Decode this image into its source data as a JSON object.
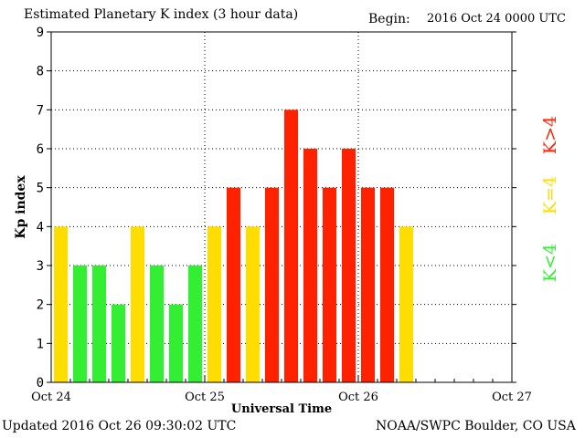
{
  "header": {
    "title": "Estimated Planetary K index (3 hour data)",
    "begin_label": "Begin:",
    "begin_value": "2016 Oct 24 0000 UTC"
  },
  "footer": {
    "updated": "Updated 2016 Oct 26 09:30:02 UTC",
    "credit": "NOAA/SWPC Boulder, CO USA"
  },
  "chart_data": {
    "type": "bar",
    "ylabel": "Kp index",
    "xlabel": "Universal Time",
    "ylim": [
      0,
      9
    ],
    "yticks": [
      0,
      1,
      2,
      3,
      4,
      5,
      6,
      7,
      8,
      9
    ],
    "xlim_days": [
      0,
      3
    ],
    "xticks": [
      "Oct 24",
      "Oct 25",
      "Oct 26",
      "Oct 27"
    ],
    "grid": true,
    "legend": [
      {
        "label": "K<4",
        "color": "#33ee33"
      },
      {
        "label": "K=4",
        "color": "#ffdd00"
      },
      {
        "label": "K>4",
        "color": "#ff2200"
      }
    ],
    "colors": {
      "low": "#33ee33",
      "equal": "#ffdd00",
      "high": "#ff2200"
    },
    "values": [
      4,
      3,
      3,
      2,
      4,
      3,
      2,
      3,
      4,
      5,
      4,
      5,
      7,
      6,
      5,
      6,
      5,
      5,
      4
    ]
  }
}
